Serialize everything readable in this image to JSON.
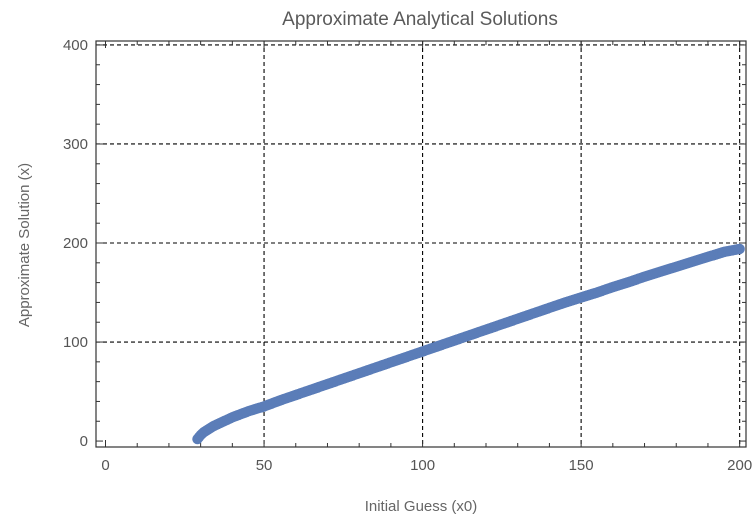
{
  "chart_data": {
    "type": "scatter",
    "title": "Approximate Analytical Solutions",
    "xlabel": "Initial Guess (x0)",
    "ylabel": "Approximate Solution (x)",
    "xlim": [
      -3,
      202
    ],
    "ylim": [
      -6,
      404
    ],
    "x_ticks": [
      0,
      50,
      100,
      150,
      200
    ],
    "y_ticks": [
      0,
      100,
      200,
      300,
      400
    ],
    "x_tick_labels": [
      "0",
      "50",
      "100",
      "150",
      "200"
    ],
    "y_tick_labels": [
      "0",
      "100",
      "200",
      "300",
      "400"
    ],
    "grid": "dashed-major",
    "point_color": "#5b7db8",
    "grid_color": "#000000",
    "frame_color": "#333333",
    "x_start": 29,
    "x_end": 200,
    "x_step": 0.5,
    "y_values_description_free": true,
    "series": [
      {
        "values_x": [
          29,
          30,
          31,
          32,
          33,
          34,
          35,
          36,
          37,
          38,
          40,
          45,
          50,
          55,
          60,
          65,
          70,
          75,
          80,
          85,
          90,
          95,
          100,
          105,
          110,
          115,
          120,
          125,
          130,
          135,
          140,
          145,
          150,
          155,
          160,
          165,
          170,
          175,
          180,
          185,
          190,
          195,
          200
        ],
        "values_y": [
          2,
          6,
          9,
          11,
          13,
          15,
          16.5,
          18,
          19.5,
          21,
          24,
          30,
          35,
          41,
          46.5,
          52,
          57.5,
          63,
          68.5,
          74,
          79.5,
          85,
          90.5,
          96,
          101.5,
          107,
          112.5,
          118,
          123.5,
          129,
          134.5,
          140,
          145,
          150,
          155.5,
          160.5,
          166,
          171,
          176,
          181,
          186,
          191,
          194
        ]
      }
    ]
  }
}
